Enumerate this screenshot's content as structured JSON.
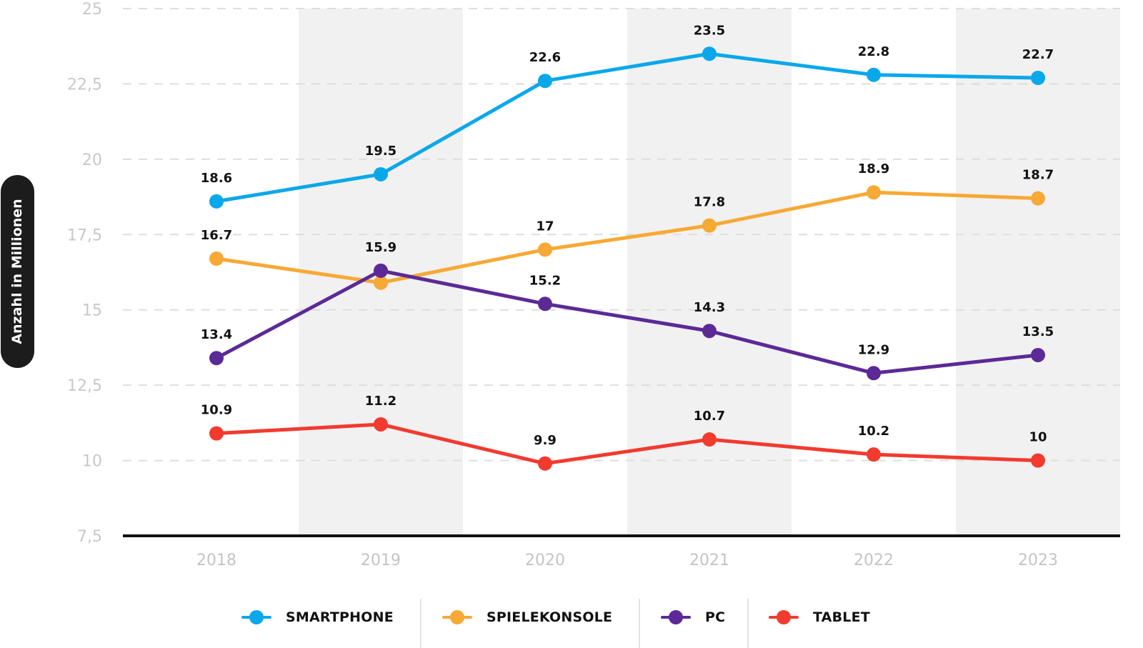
{
  "chart_data": {
    "type": "line",
    "title": "",
    "xlabel": "",
    "ylabel": "Anzahl in Millionen",
    "categories": [
      "2018",
      "2019",
      "2020",
      "2021",
      "2022",
      "2023"
    ],
    "ylim": [
      7.5,
      25
    ],
    "y_ticks": [
      {
        "value": 25,
        "label": "25"
      },
      {
        "value": 22.5,
        "label": "22,5"
      },
      {
        "value": 20,
        "label": "20"
      },
      {
        "value": 17.5,
        "label": "17,5"
      },
      {
        "value": 15,
        "label": "15"
      },
      {
        "value": 12.5,
        "label": "12,5"
      },
      {
        "value": 10,
        "label": "10"
      },
      {
        "value": 7.5,
        "label": "7,5"
      }
    ],
    "grid": true,
    "legend_position": "bottom",
    "series": [
      {
        "name": "SMARTPHONE",
        "color": "#0aa8ea",
        "values": [
          18.6,
          19.5,
          22.6,
          23.5,
          22.8,
          22.7
        ],
        "labels": [
          "18.6",
          "19.5",
          "22.6",
          "23.5",
          "22.8",
          "22.7"
        ]
      },
      {
        "name": "SPIELEKONSOLE",
        "color": "#f7a935",
        "values": [
          16.7,
          15.9,
          17,
          17.8,
          18.9,
          18.7
        ],
        "labels": [
          "16.7",
          "15.9",
          "17",
          "17.8",
          "18.9",
          "18.7"
        ]
      },
      {
        "name": "PC",
        "color": "#5b2a96",
        "values": [
          13.4,
          16.3,
          15.2,
          14.3,
          12.9,
          13.5
        ],
        "labels": [
          "13.4",
          null,
          "15.2",
          "14.3",
          "12.9",
          "13.5"
        ]
      },
      {
        "name": "TABLET",
        "color": "#f23a2f",
        "values": [
          10.9,
          11.2,
          9.9,
          10.7,
          10.2,
          10
        ],
        "labels": [
          "10.9",
          "11.2",
          "9.9",
          "10.7",
          "10.2",
          "10"
        ]
      }
    ]
  },
  "colors": {
    "band": "#f1f1f1",
    "axis": "#111111",
    "grid": "#dedede"
  }
}
